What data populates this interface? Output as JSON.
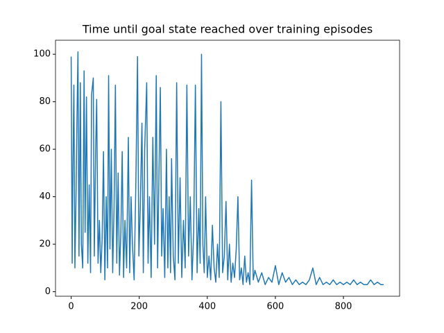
{
  "chart_data": {
    "type": "line",
    "title": "Time until goal state reached over training episodes",
    "x": [
      0,
      3,
      5,
      8,
      11,
      14,
      17,
      20,
      23,
      27,
      30,
      34,
      38,
      41,
      45,
      49,
      53,
      57,
      60,
      65,
      68,
      72,
      75,
      79,
      83,
      87,
      91,
      95,
      99,
      103,
      107,
      110,
      114,
      118,
      122,
      126,
      130,
      134,
      138,
      142,
      146,
      150,
      154,
      158,
      163,
      168,
      172,
      176,
      180,
      185,
      190,
      195,
      199,
      203,
      208,
      212,
      216,
      222,
      226,
      230,
      235,
      240,
      245,
      250,
      254,
      258,
      262,
      266,
      270,
      275,
      280,
      284,
      288,
      292,
      295,
      300,
      305,
      310,
      315,
      320,
      325,
      330,
      335,
      340,
      345,
      350,
      355,
      360,
      365,
      370,
      375,
      379,
      383,
      387,
      391,
      395,
      400,
      405,
      410,
      415,
      420,
      425,
      430,
      435,
      440,
      445,
      450,
      455,
      460,
      465,
      470,
      475,
      480,
      485,
      490,
      495,
      500,
      505,
      510,
      515,
      520,
      525,
      530,
      535,
      540,
      550,
      560,
      570,
      580,
      590,
      600,
      610,
      620,
      630,
      640,
      650,
      660,
      670,
      680,
      690,
      700,
      710,
      720,
      730,
      740,
      750,
      760,
      770,
      780,
      790,
      800,
      810,
      820,
      830,
      840,
      850,
      860,
      870,
      880,
      890,
      900,
      910,
      918
    ],
    "values": [
      99,
      12,
      50,
      87,
      10,
      37,
      72,
      101,
      15,
      88,
      20,
      10,
      93,
      25,
      82,
      12,
      45,
      8,
      83,
      90,
      15,
      60,
      81,
      12,
      30,
      8,
      22,
      59,
      5,
      40,
      10,
      91,
      18,
      60,
      8,
      35,
      87,
      12,
      50,
      7,
      25,
      59,
      6,
      30,
      10,
      65,
      8,
      40,
      20,
      5,
      45,
      99,
      15,
      35,
      71,
      8,
      60,
      88,
      12,
      40,
      6,
      65,
      20,
      91,
      10,
      50,
      86,
      15,
      35,
      6,
      60,
      10,
      40,
      8,
      56,
      15,
      5,
      88,
      12,
      48,
      6,
      30,
      10,
      87,
      15,
      40,
      5,
      25,
      87,
      8,
      35,
      12,
      100,
      20,
      8,
      40,
      6,
      15,
      5,
      28,
      10,
      4,
      20,
      6,
      80,
      8,
      15,
      38,
      5,
      20,
      4,
      12,
      6,
      18,
      40,
      5,
      10,
      3,
      15,
      4,
      8,
      3,
      47,
      5,
      9,
      4,
      8,
      3,
      6,
      4,
      11,
      3,
      8,
      4,
      6,
      3,
      5,
      3,
      4,
      3,
      5,
      10,
      3,
      6,
      3,
      4,
      3,
      5,
      3,
      4,
      3,
      4,
      3,
      5,
      3,
      4,
      3,
      3,
      5,
      3,
      4,
      3,
      3
    ],
    "color": "#1f77b4",
    "xlim": [
      -46,
      965
    ],
    "xticks": [
      0,
      200,
      400,
      600,
      800
    ],
    "ylim": [
      -1.9,
      105.9
    ],
    "yticks": [
      0,
      20,
      40,
      60,
      80,
      100
    ]
  }
}
